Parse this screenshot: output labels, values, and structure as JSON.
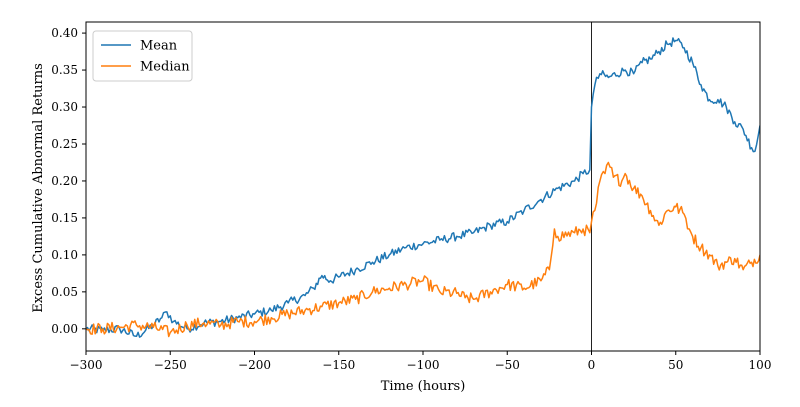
{
  "chart_data": {
    "type": "line",
    "title": "",
    "xlabel": "Time (hours)",
    "ylabel": "Excess Cumulative Abnormal Returns",
    "xlim": [
      -300,
      100
    ],
    "ylim": [
      -0.03,
      0.415
    ],
    "x_ticks": [
      -300,
      -250,
      -200,
      -150,
      -100,
      -50,
      0,
      50,
      100
    ],
    "x_tick_labels": [
      "−300",
      "−250",
      "−200",
      "−150",
      "−100",
      "−50",
      "0",
      "50",
      "100"
    ],
    "y_ticks": [
      0.0,
      0.05,
      0.1,
      0.15,
      0.2,
      0.25,
      0.3,
      0.35,
      0.4
    ],
    "y_tick_labels": [
      "0.00",
      "0.05",
      "0.10",
      "0.15",
      "0.20",
      "0.25",
      "0.30",
      "0.35",
      "0.40"
    ],
    "grid": false,
    "legend_position": "top-left",
    "vertical_line_x": 0,
    "series": [
      {
        "name": "Mean",
        "color": "#1f77b4",
        "points": [
          [
            -300,
            0.0
          ],
          [
            -290,
            -0.002
          ],
          [
            -280,
            0.0
          ],
          [
            -270,
            -0.01
          ],
          [
            -260,
            0.005
          ],
          [
            -255,
            0.015
          ],
          [
            -252,
            0.023
          ],
          [
            -248,
            0.01
          ],
          [
            -240,
            0.0
          ],
          [
            -230,
            0.008
          ],
          [
            -220,
            0.01
          ],
          [
            -210,
            0.015
          ],
          [
            -200,
            0.02
          ],
          [
            -190,
            0.025
          ],
          [
            -180,
            0.035
          ],
          [
            -170,
            0.045
          ],
          [
            -165,
            0.055
          ],
          [
            -160,
            0.072
          ],
          [
            -155,
            0.065
          ],
          [
            -150,
            0.07
          ],
          [
            -140,
            0.08
          ],
          [
            -130,
            0.09
          ],
          [
            -120,
            0.1
          ],
          [
            -110,
            0.11
          ],
          [
            -100,
            0.115
          ],
          [
            -90,
            0.12
          ],
          [
            -80,
            0.125
          ],
          [
            -70,
            0.13
          ],
          [
            -60,
            0.14
          ],
          [
            -50,
            0.145
          ],
          [
            -40,
            0.16
          ],
          [
            -30,
            0.175
          ],
          [
            -20,
            0.19
          ],
          [
            -10,
            0.2
          ],
          [
            -5,
            0.21
          ],
          [
            -1,
            0.215
          ],
          [
            0,
            0.3
          ],
          [
            2,
            0.33
          ],
          [
            5,
            0.345
          ],
          [
            10,
            0.34
          ],
          [
            20,
            0.35
          ],
          [
            25,
            0.345
          ],
          [
            30,
            0.36
          ],
          [
            35,
            0.365
          ],
          [
            40,
            0.375
          ],
          [
            45,
            0.385
          ],
          [
            50,
            0.39
          ],
          [
            55,
            0.38
          ],
          [
            60,
            0.36
          ],
          [
            65,
            0.33
          ],
          [
            70,
            0.31
          ],
          [
            75,
            0.31
          ],
          [
            80,
            0.3
          ],
          [
            85,
            0.28
          ],
          [
            90,
            0.27
          ],
          [
            95,
            0.245
          ],
          [
            97,
            0.24
          ],
          [
            100,
            0.275
          ]
        ]
      },
      {
        "name": "Median",
        "color": "#ff7f0e",
        "points": [
          [
            -300,
            0.0
          ],
          [
            -290,
            0.0
          ],
          [
            -280,
            0.002
          ],
          [
            -270,
            0.005
          ],
          [
            -260,
            0.002
          ],
          [
            -250,
            -0.005
          ],
          [
            -240,
            0.005
          ],
          [
            -230,
            0.008
          ],
          [
            -220,
            0.005
          ],
          [
            -210,
            0.01
          ],
          [
            -200,
            0.01
          ],
          [
            -190,
            0.015
          ],
          [
            -180,
            0.02
          ],
          [
            -170,
            0.025
          ],
          [
            -160,
            0.03
          ],
          [
            -150,
            0.035
          ],
          [
            -140,
            0.04
          ],
          [
            -130,
            0.05
          ],
          [
            -120,
            0.055
          ],
          [
            -110,
            0.06
          ],
          [
            -100,
            0.065
          ],
          [
            -90,
            0.05
          ],
          [
            -80,
            0.048
          ],
          [
            -75,
            0.042
          ],
          [
            -70,
            0.04
          ],
          [
            -60,
            0.05
          ],
          [
            -50,
            0.06
          ],
          [
            -40,
            0.055
          ],
          [
            -30,
            0.065
          ],
          [
            -25,
            0.08
          ],
          [
            -22,
            0.135
          ],
          [
            -20,
            0.125
          ],
          [
            -10,
            0.13
          ],
          [
            -5,
            0.135
          ],
          [
            -1,
            0.13
          ],
          [
            0,
            0.145
          ],
          [
            3,
            0.17
          ],
          [
            5,
            0.2
          ],
          [
            8,
            0.21
          ],
          [
            10,
            0.225
          ],
          [
            13,
            0.205
          ],
          [
            18,
            0.2
          ],
          [
            20,
            0.21
          ],
          [
            25,
            0.19
          ],
          [
            30,
            0.18
          ],
          [
            35,
            0.16
          ],
          [
            40,
            0.14
          ],
          [
            45,
            0.16
          ],
          [
            50,
            0.165
          ],
          [
            55,
            0.155
          ],
          [
            58,
            0.135
          ],
          [
            60,
            0.125
          ],
          [
            65,
            0.11
          ],
          [
            70,
            0.1
          ],
          [
            75,
            0.085
          ],
          [
            80,
            0.09
          ],
          [
            85,
            0.095
          ],
          [
            90,
            0.08
          ],
          [
            95,
            0.09
          ],
          [
            100,
            0.1
          ]
        ]
      }
    ]
  }
}
